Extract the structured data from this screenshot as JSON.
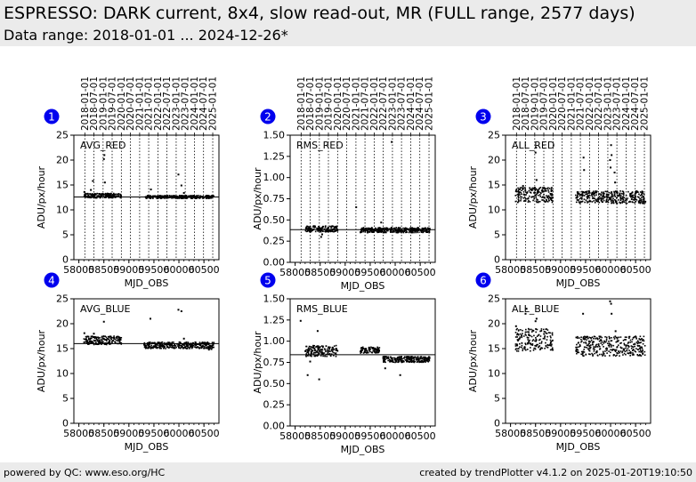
{
  "header": {
    "title": "ESPRESSO: DARK current, 8x4, slow read-out, MR (FULL range, 2577 days)",
    "subtitle": "Data range: 2018-01-01 ... 2024-12-26*"
  },
  "footer": {
    "left": "powered by QC: www.eso.org/HC",
    "right": "created by trendPlotter v4.1.2 on 2025-01-20T19:10:50"
  },
  "colors": {
    "marker_badge": "#0000ee",
    "points": "#000000",
    "header_bg": "#ebebeb"
  },
  "chart_data": [
    {
      "id": 1,
      "label": "AVG_RED",
      "type": "scatter",
      "xlabel": "MJD_OBS",
      "ylabel": "ADU/px/hour",
      "xlim": [
        57900,
        60800
      ],
      "ylim": [
        0,
        25
      ],
      "xticks": [
        58000,
        58500,
        59000,
        59500,
        60000,
        60500
      ],
      "yticks": [
        0,
        5,
        10,
        15,
        20,
        25
      ],
      "top_ticks": [
        "2018-01-01",
        "2018-07-01",
        "2019-01-01",
        "2019-07-01",
        "2020-01-01",
        "2020-07-01",
        "2021-01-01",
        "2021-07-01",
        "2022-01-01",
        "2022-07-01",
        "2023-01-01",
        "2023-07-01",
        "2024-01-01",
        "2024-07-01",
        "2025-01-01"
      ],
      "top_mjd": [
        58119,
        58300,
        58484,
        58665,
        58849,
        59031,
        59215,
        59396,
        59580,
        59761,
        59945,
        60126,
        60310,
        60492,
        60676
      ],
      "reference": 12.6,
      "bands": [
        [
          58100,
          58850,
          12.4,
          13.3
        ],
        [
          59330,
          60700,
          12.3,
          12.9
        ]
      ],
      "outliers": [
        [
          58110,
          13.6
        ],
        [
          58240,
          14.0
        ],
        [
          58280,
          15.8
        ],
        [
          58500,
          20.2
        ],
        [
          58510,
          21.0
        ],
        [
          58520,
          15.5
        ],
        [
          59440,
          14.1
        ],
        [
          59990,
          17.1
        ],
        [
          60050,
          14.9
        ],
        [
          60100,
          13.4
        ]
      ]
    },
    {
      "id": 2,
      "label": "RMS_RED",
      "type": "scatter",
      "xlabel": "MJD_OBS",
      "ylabel": "ADU/px/hour",
      "xlim": [
        57900,
        60800
      ],
      "ylim": [
        0,
        1.5
      ],
      "xticks": [
        58000,
        58500,
        59000,
        59500,
        60000,
        60500
      ],
      "yticks": [
        0.0,
        0.25,
        0.5,
        0.75,
        1.0,
        1.25,
        1.5
      ],
      "top_ticks": [
        "2018-01-01",
        "2018-07-01",
        "2019-01-01",
        "2019-07-01",
        "2020-01-01",
        "2020-07-01",
        "2021-01-01",
        "2021-07-01",
        "2022-01-01",
        "2022-07-01",
        "2023-01-01",
        "2023-07-01",
        "2024-01-01",
        "2024-07-01",
        "2025-01-01"
      ],
      "top_mjd": [
        58119,
        58300,
        58484,
        58665,
        58849,
        59031,
        59215,
        59396,
        59580,
        59761,
        59945,
        60126,
        60310,
        60492,
        60676
      ],
      "reference": 0.385,
      "bands": [
        [
          58200,
          58850,
          0.36,
          0.43
        ],
        [
          59300,
          60700,
          0.35,
          0.41
        ]
      ],
      "outliers": [
        [
          58520,
          0.3
        ],
        [
          58540,
          0.33
        ],
        [
          59220,
          0.65
        ],
        [
          59720,
          0.47
        ],
        [
          59930,
          1.42
        ],
        [
          58300,
          0.39
        ]
      ]
    },
    {
      "id": 3,
      "label": "ALL_RED",
      "type": "scatter",
      "xlabel": "MJD_OBS",
      "ylabel": "ADU/px/hour",
      "xlim": [
        57900,
        60800
      ],
      "ylim": [
        0,
        25
      ],
      "xticks": [
        58000,
        58500,
        59000,
        59500,
        60000,
        60500
      ],
      "yticks": [
        0,
        5,
        10,
        15,
        20,
        25
      ],
      "top_ticks": [
        "2018-01-01",
        "2018-07-01",
        "2019-01-01",
        "2019-07-01",
        "2020-01-01",
        "2020-07-01",
        "2021-01-01",
        "2021-07-01",
        "2022-01-01",
        "2022-07-01",
        "2023-01-01",
        "2023-07-01",
        "2024-01-01",
        "2024-07-01",
        "2025-01-01"
      ],
      "top_mjd": [
        58119,
        58300,
        58484,
        58665,
        58849,
        59031,
        59215,
        59396,
        59580,
        59761,
        59945,
        60126,
        60310,
        60492,
        60676
      ],
      "reference": null,
      "bands": [
        [
          58100,
          58850,
          11.5,
          14.5
        ],
        [
          59300,
          60700,
          11.3,
          13.8
        ]
      ],
      "outliers": [
        [
          58500,
          21.5
        ],
        [
          58510,
          22.5
        ],
        [
          58520,
          16.0
        ],
        [
          58250,
          14.8
        ],
        [
          59460,
          20.5
        ],
        [
          59470,
          18.0
        ],
        [
          59990,
          20.0
        ],
        [
          60010,
          23.0
        ],
        [
          60020,
          21.0
        ],
        [
          60000,
          18.5
        ],
        [
          60080,
          17.5
        ],
        [
          60090,
          15.5
        ]
      ]
    },
    {
      "id": 4,
      "label": "AVG_BLUE",
      "type": "scatter",
      "xlabel": "MJD_OBS",
      "ylabel": "ADU/px/hour",
      "xlim": [
        57900,
        60800
      ],
      "ylim": [
        0,
        25
      ],
      "xticks": [
        58000,
        58500,
        59000,
        59500,
        60000,
        60500
      ],
      "yticks": [
        0,
        5,
        10,
        15,
        20,
        25
      ],
      "top_ticks": [],
      "top_mjd": [],
      "reference": 16.0,
      "bands": [
        [
          58100,
          58850,
          15.8,
          17.5
        ],
        [
          59300,
          60700,
          15.0,
          16.3
        ]
      ],
      "outliers": [
        [
          58110,
          18.1
        ],
        [
          58300,
          18.0
        ],
        [
          58500,
          20.4
        ],
        [
          59430,
          21.0
        ],
        [
          59990,
          22.8
        ],
        [
          60050,
          22.5
        ],
        [
          60100,
          17.0
        ],
        [
          60600,
          14.8
        ],
        [
          60650,
          14.9
        ]
      ]
    },
    {
      "id": 5,
      "label": "RMS_BLUE",
      "type": "scatter",
      "xlabel": "MJD_OBS",
      "ylabel": "ADU/px/hour",
      "xlim": [
        57900,
        60800
      ],
      "ylim": [
        0,
        1.5
      ],
      "xticks": [
        58000,
        58500,
        59000,
        59500,
        60000,
        60500
      ],
      "yticks": [
        0.0,
        0.25,
        0.5,
        0.75,
        1.0,
        1.25,
        1.5
      ],
      "top_ticks": [],
      "top_mjd": [],
      "reference": 0.84,
      "bands": [
        [
          58200,
          58850,
          0.82,
          0.95
        ],
        [
          59300,
          59700,
          0.86,
          0.93
        ],
        [
          59750,
          60700,
          0.75,
          0.82
        ]
      ],
      "outliers": [
        [
          58110,
          1.24
        ],
        [
          58250,
          0.6
        ],
        [
          58300,
          0.76
        ],
        [
          58450,
          1.12
        ],
        [
          58480,
          0.55
        ],
        [
          60100,
          0.6
        ],
        [
          59800,
          0.68
        ]
      ]
    },
    {
      "id": 6,
      "label": "ALL_BLUE",
      "type": "scatter",
      "xlabel": "MJD_OBS",
      "ylabel": "ADU/px/hour",
      "xlim": [
        57900,
        60800
      ],
      "ylim": [
        0,
        25
      ],
      "xticks": [
        58000,
        58500,
        59000,
        59500,
        60000,
        60500
      ],
      "yticks": [
        0,
        5,
        10,
        15,
        20,
        25
      ],
      "top_ticks": [],
      "top_mjd": [],
      "reference": null,
      "bands": [
        [
          58100,
          58850,
          14.5,
          19.0
        ],
        [
          59300,
          60700,
          13.5,
          17.5
        ]
      ],
      "outliers": [
        [
          58110,
          19.5
        ],
        [
          58300,
          22.0
        ],
        [
          58320,
          23.0
        ],
        [
          58500,
          20.5
        ],
        [
          58520,
          21.0
        ],
        [
          59450,
          22.0
        ],
        [
          59990,
          24.5
        ],
        [
          60010,
          24.0
        ],
        [
          60020,
          22.0
        ],
        [
          60100,
          18.5
        ]
      ]
    }
  ]
}
